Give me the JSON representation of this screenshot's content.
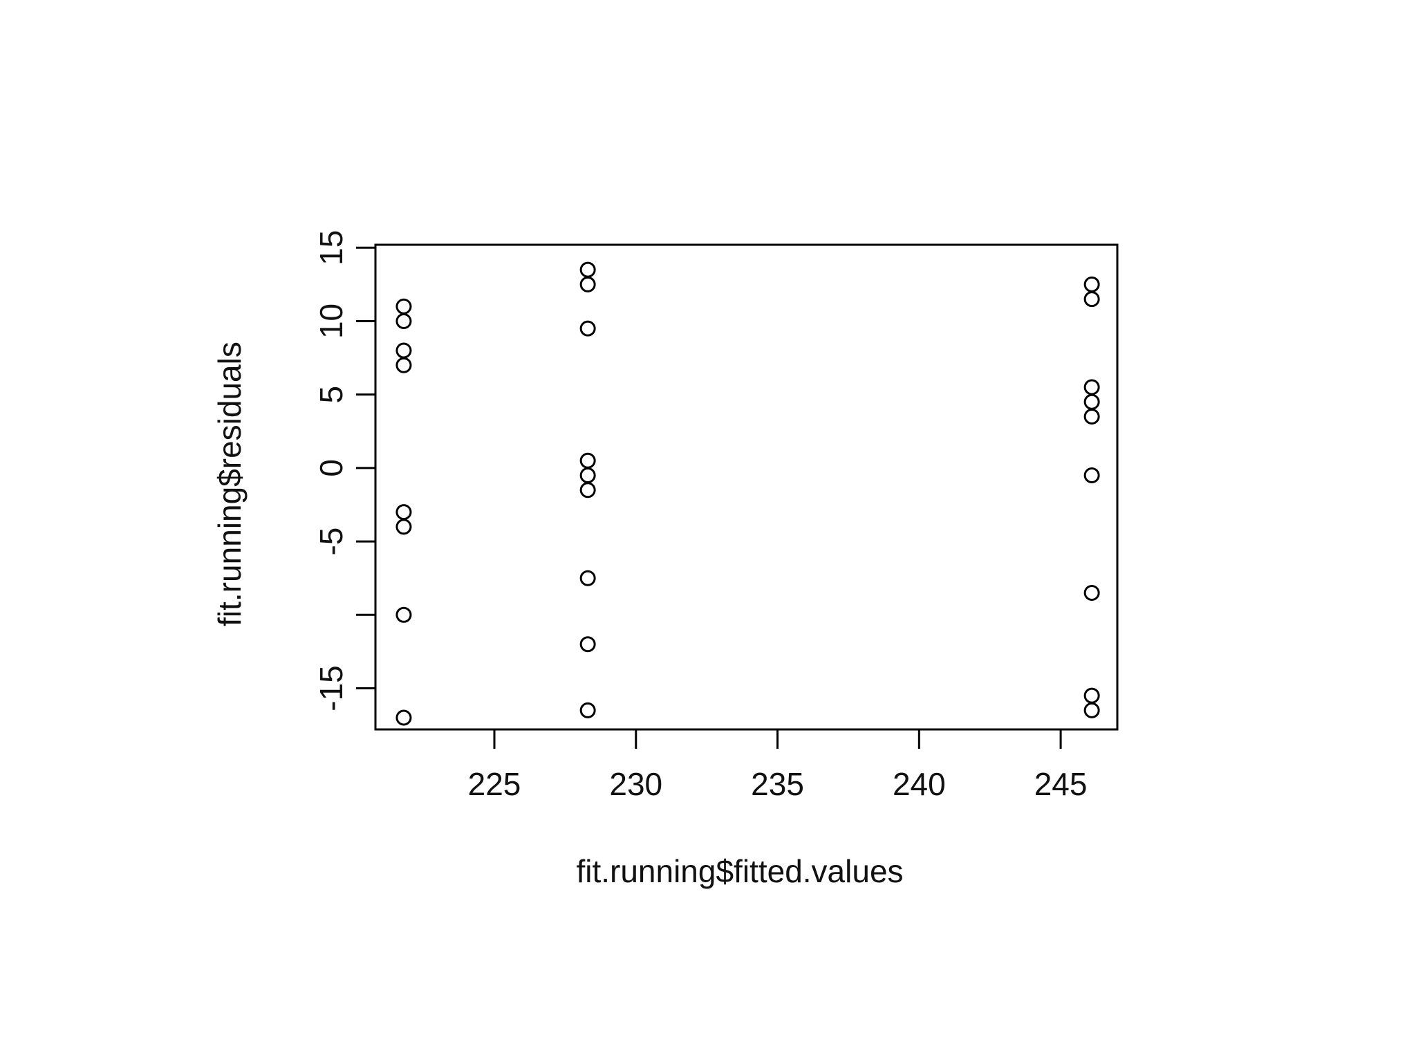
{
  "chart_data": {
    "type": "scatter",
    "title": "",
    "xlabel": "fit.running$fitted.values",
    "ylabel": "fit.running$residuals",
    "xlim": [
      220.8,
      247.0
    ],
    "ylim": [
      -17.8,
      15.2
    ],
    "x_ticks": [
      225,
      230,
      235,
      240,
      245
    ],
    "y_ticks": [
      -15,
      -5,
      0,
      5,
      10,
      15
    ],
    "y_tick_marks": [
      -15,
      -10,
      -5,
      0,
      5,
      10,
      15
    ],
    "x_tick_labels": [
      "225",
      "230",
      "235",
      "240",
      "245"
    ],
    "y_tick_labels": [
      "-15",
      "-5",
      "0",
      "5",
      "10",
      "15"
    ],
    "grid": false,
    "legend": "none",
    "marker": "open-circle",
    "colors": {
      "points": "#000000",
      "axes": "#000000"
    },
    "points": [
      {
        "x": 221.8,
        "y": 11.0
      },
      {
        "x": 221.8,
        "y": 10.0
      },
      {
        "x": 221.8,
        "y": 8.0
      },
      {
        "x": 221.8,
        "y": 7.0
      },
      {
        "x": 221.8,
        "y": -3.0
      },
      {
        "x": 221.8,
        "y": -4.0
      },
      {
        "x": 221.8,
        "y": -10.0
      },
      {
        "x": 221.8,
        "y": -17.0
      },
      {
        "x": 228.3,
        "y": 13.5
      },
      {
        "x": 228.3,
        "y": 12.5
      },
      {
        "x": 228.3,
        "y": 9.5
      },
      {
        "x": 228.3,
        "y": 0.5
      },
      {
        "x": 228.3,
        "y": -0.5
      },
      {
        "x": 228.3,
        "y": -1.5
      },
      {
        "x": 228.3,
        "y": -7.5
      },
      {
        "x": 228.3,
        "y": -12.0
      },
      {
        "x": 228.3,
        "y": -16.5
      },
      {
        "x": 246.1,
        "y": 12.5
      },
      {
        "x": 246.1,
        "y": 11.5
      },
      {
        "x": 246.1,
        "y": 5.5
      },
      {
        "x": 246.1,
        "y": 4.5
      },
      {
        "x": 246.1,
        "y": 3.5
      },
      {
        "x": 246.1,
        "y": -0.5
      },
      {
        "x": 246.1,
        "y": -8.5
      },
      {
        "x": 246.1,
        "y": -15.5
      },
      {
        "x": 246.1,
        "y": -16.5
      }
    ]
  }
}
